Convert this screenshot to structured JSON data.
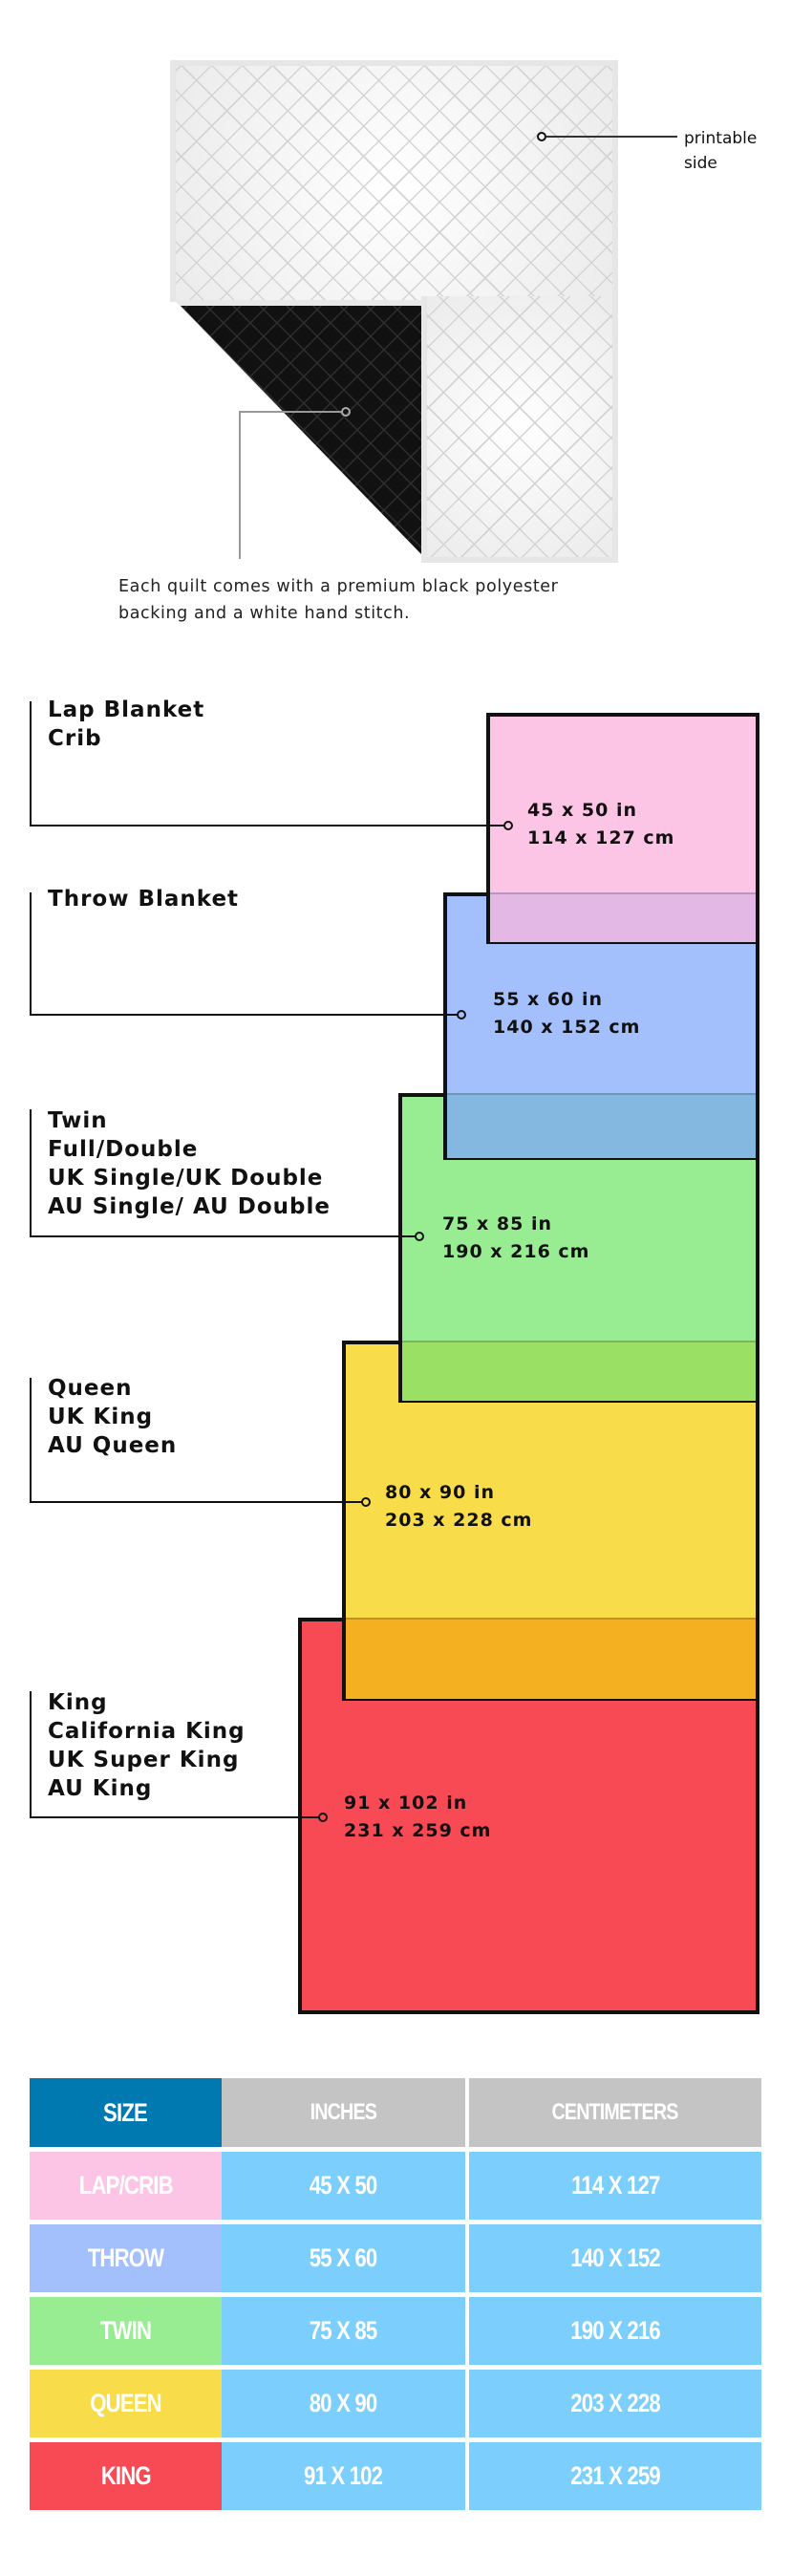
{
  "quilt": {
    "printable_label": [
      "printable",
      "side"
    ],
    "caption": [
      "Each quilt comes with a premium black polyester",
      "backing and a white hand stitch."
    ]
  },
  "sizes": [
    {
      "names": [
        "Lap Blanket",
        "Crib"
      ],
      "inches": "45 x 50 in",
      "cm": "114 x 127 cm",
      "color": "#fdc5e5"
    },
    {
      "names": [
        "Throw Blanket"
      ],
      "inches": "55 x 60 in",
      "cm": "140 x 152 cm",
      "color": "#a3c0fd"
    },
    {
      "names": [
        "Twin",
        "Full/Double",
        "UK Single/UK Double",
        "AU Single/ AU Double"
      ],
      "inches": "75 x 85 in",
      "cm": "190 x 216 cm",
      "color": "#98ed92"
    },
    {
      "names": [
        "Queen",
        "UK King",
        "AU Queen"
      ],
      "inches": "80 x 90 in",
      "cm": "203 x 228 cm",
      "color": "#f8dc4a"
    },
    {
      "names": [
        "King",
        "California King",
        "UK Super King",
        "AU King"
      ],
      "inches": "91 x 102 in",
      "cm": "231 x 259 cm",
      "color": "#f84a54"
    }
  ],
  "overlap_colors": [
    "#e4b8e4",
    "#85b8e0",
    "#9ae065",
    "#f5b022"
  ],
  "table": {
    "headers": [
      "SIZE",
      "INCHES",
      "CENTIMETERS"
    ],
    "header_colors": [
      "#0079b0",
      "#c4c4c4",
      "#c4c4c4"
    ],
    "cell_color": "#7ccefc",
    "rows": [
      {
        "size": "LAP/CRIB",
        "inches": "45 X 50",
        "cm": "114 X 127",
        "color": "#fdc5e5"
      },
      {
        "size": "THROW",
        "inches": "55 X 60",
        "cm": "140 X 152",
        "color": "#a3c0fd"
      },
      {
        "size": "TWIN",
        "inches": "75 X 85",
        "cm": "190 X 216",
        "color": "#98ed92"
      },
      {
        "size": "QUEEN",
        "inches": "80 X 90",
        "cm": "203 X 228",
        "color": "#f8dc4a"
      },
      {
        "size": "KING",
        "inches": "91 X 102",
        "cm": "231 X 259",
        "color": "#f84a54"
      }
    ]
  }
}
